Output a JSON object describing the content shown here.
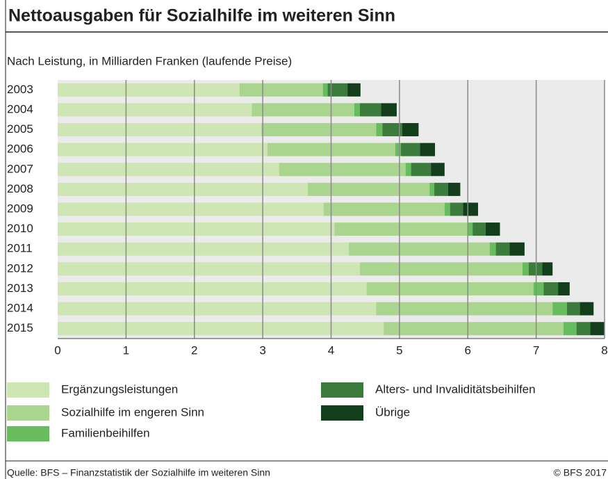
{
  "chart_data": {
    "type": "stacked-barh",
    "title": "Nettoausgaben für Sozialhilfe im weiteren Sinn",
    "subtitle": "Nach Leistung, in Milliarden Franken (laufende Preise)",
    "categories": [
      "2003",
      "2004",
      "2005",
      "2006",
      "2007",
      "2008",
      "2009",
      "2010",
      "2011",
      "2012",
      "2013",
      "2014",
      "2015"
    ],
    "series": [
      {
        "name": "Ergänzungsleistungen",
        "color": "#cde6b3",
        "values": [
          2.66,
          2.84,
          2.98,
          3.07,
          3.24,
          3.66,
          3.89,
          4.05,
          4.26,
          4.42,
          4.52,
          4.66,
          4.77
        ]
      },
      {
        "name": "Sozialhilfe im engeren Sinn",
        "color": "#a9d58e",
        "values": [
          1.22,
          1.5,
          1.68,
          1.87,
          1.85,
          1.78,
          1.77,
          1.95,
          2.06,
          2.38,
          2.44,
          2.58,
          2.63
        ]
      },
      {
        "name": "Familienbeihilfen",
        "color": "#67bd5e",
        "values": [
          0.07,
          0.08,
          0.09,
          0.08,
          0.08,
          0.07,
          0.08,
          0.07,
          0.09,
          0.09,
          0.15,
          0.21,
          0.19
        ]
      },
      {
        "name": "Alters- und Invaliditätsbeihilfen",
        "color": "#3b7b3b",
        "values": [
          0.29,
          0.31,
          0.29,
          0.28,
          0.29,
          0.2,
          0.19,
          0.19,
          0.2,
          0.2,
          0.21,
          0.19,
          0.2
        ]
      },
      {
        "name": "Übrige",
        "color": "#123e1b",
        "values": [
          0.19,
          0.23,
          0.24,
          0.22,
          0.2,
          0.18,
          0.22,
          0.21,
          0.22,
          0.15,
          0.17,
          0.2,
          0.21
        ]
      }
    ],
    "xlim": [
      0,
      8
    ],
    "xticks": [
      0,
      1,
      2,
      3,
      4,
      5,
      6,
      7,
      8
    ],
    "grid": true,
    "source": "Quelle: BFS – Finanzstatistik der Sozialhilfe im weiteren Sinn",
    "copyright": "© BFS 2017"
  }
}
